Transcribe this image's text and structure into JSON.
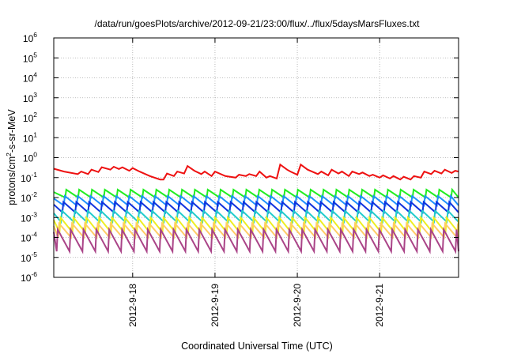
{
  "chart_data": {
    "type": "line",
    "title": "/data/run/goesPlots/archive/2012-09-21/23:00/flux/../flux/5daysMarsFluxes.txt",
    "xlabel": "Coordinated Universal Time (UTC)",
    "ylabel_parts": {
      "pre": "protons/cm",
      "sup": "2",
      "post": "-s-sr-MeV"
    },
    "y_scale": "log",
    "ylim": [
      1e-06,
      1000000.0
    ],
    "y_ticks": [
      {
        "value": -6,
        "base": "10",
        "exp": "-6"
      },
      {
        "value": -5,
        "base": "10",
        "exp": "-5"
      },
      {
        "value": -4,
        "base": "10",
        "exp": "-4"
      },
      {
        "value": -3,
        "base": "10",
        "exp": "-3"
      },
      {
        "value": -2,
        "base": "10",
        "exp": "-2"
      },
      {
        "value": -1,
        "base": "10",
        "exp": "-1"
      },
      {
        "value": 0,
        "base": "10",
        "exp": "0"
      },
      {
        "value": 1,
        "base": "10",
        "exp": "1"
      },
      {
        "value": 2,
        "base": "10",
        "exp": "2"
      },
      {
        "value": 3,
        "base": "10",
        "exp": "3"
      },
      {
        "value": 4,
        "base": "10",
        "exp": "4"
      },
      {
        "value": 5,
        "base": "10",
        "exp": "5"
      },
      {
        "value": 6,
        "base": "10",
        "exp": "6"
      }
    ],
    "xlim": [
      "2012-09-17 01:00",
      "2012-09-21 23:00"
    ],
    "x_ticks": [
      {
        "label": "2012-9-18",
        "date": "2012-09-18"
      },
      {
        "label": "2012-9-19",
        "date": "2012-09-19"
      },
      {
        "label": "2012-9-20",
        "date": "2012-09-20"
      },
      {
        "label": "2012-9-21",
        "date": "2012-09-21"
      }
    ],
    "grid": true,
    "legend": "none",
    "series": [
      {
        "color": "#ee1111",
        "shape": "irregular",
        "points": [
          [
            "2012-09-17 01:00",
            0.28
          ],
          [
            "2012-09-17 04:00",
            0.2
          ],
          [
            "2012-09-17 08:00",
            0.15
          ],
          [
            "2012-09-17 09:00",
            0.2
          ],
          [
            "2012-09-17 11:00",
            0.15
          ],
          [
            "2012-09-17 12:00",
            0.25
          ],
          [
            "2012-09-17 14:00",
            0.19
          ],
          [
            "2012-09-17 15:00",
            0.33
          ],
          [
            "2012-09-17 17:30",
            0.25
          ],
          [
            "2012-09-17 18:30",
            0.35
          ],
          [
            "2012-09-17 20:00",
            0.27
          ],
          [
            "2012-09-17 21:00",
            0.33
          ],
          [
            "2012-09-17 23:00",
            0.22
          ],
          [
            "2012-09-18 00:00",
            0.3
          ],
          [
            "2012-09-18 02:00",
            0.2
          ],
          [
            "2012-09-18 05:00",
            0.12
          ],
          [
            "2012-09-18 08:00",
            0.08
          ],
          [
            "2012-09-18 09:00",
            0.08
          ],
          [
            "2012-09-18 10:00",
            0.16
          ],
          [
            "2012-09-18 12:00",
            0.12
          ],
          [
            "2012-09-18 13:00",
            0.2
          ],
          [
            "2012-09-18 15:00",
            0.16
          ],
          [
            "2012-09-18 16:00",
            0.38
          ],
          [
            "2012-09-18 18:00",
            0.22
          ],
          [
            "2012-09-18 20:00",
            0.15
          ],
          [
            "2012-09-18 21:00",
            0.2
          ],
          [
            "2012-09-18 23:00",
            0.12
          ],
          [
            "2012-09-19 00:00",
            0.2
          ],
          [
            "2012-09-19 03:00",
            0.12
          ],
          [
            "2012-09-19 06:00",
            0.1
          ],
          [
            "2012-09-19 07:00",
            0.14
          ],
          [
            "2012-09-19 09:00",
            0.12
          ],
          [
            "2012-09-19 10:00",
            0.15
          ],
          [
            "2012-09-19 12:00",
            0.12
          ],
          [
            "2012-09-19 13:00",
            0.2
          ],
          [
            "2012-09-19 15:00",
            0.1
          ],
          [
            "2012-09-19 16:00",
            0.12
          ],
          [
            "2012-09-19 18:00",
            0.09
          ],
          [
            "2012-09-19 19:00",
            0.45
          ],
          [
            "2012-09-19 21:00",
            0.25
          ],
          [
            "2012-09-19 22:00",
            0.2
          ],
          [
            "2012-09-20 00:00",
            0.14
          ],
          [
            "2012-09-20 01:00",
            0.45
          ],
          [
            "2012-09-20 03:00",
            0.25
          ],
          [
            "2012-09-20 06:00",
            0.15
          ],
          [
            "2012-09-20 07:00",
            0.2
          ],
          [
            "2012-09-20 09:00",
            0.13
          ],
          [
            "2012-09-20 10:00",
            0.25
          ],
          [
            "2012-09-20 12:00",
            0.16
          ],
          [
            "2012-09-20 13:00",
            0.2
          ],
          [
            "2012-09-20 15:00",
            0.12
          ],
          [
            "2012-09-20 16:00",
            0.2
          ],
          [
            "2012-09-20 18:00",
            0.15
          ],
          [
            "2012-09-20 19:00",
            0.18
          ],
          [
            "2012-09-20 21:00",
            0.12
          ],
          [
            "2012-09-20 22:00",
            0.14
          ],
          [
            "2012-09-21 00:00",
            0.1
          ],
          [
            "2012-09-21 01:00",
            0.13
          ],
          [
            "2012-09-21 03:00",
            0.09
          ],
          [
            "2012-09-21 04:00",
            0.12
          ],
          [
            "2012-09-21 06:00",
            0.08
          ],
          [
            "2012-09-21 07:00",
            0.11
          ],
          [
            "2012-09-21 09:00",
            0.08
          ],
          [
            "2012-09-21 10:00",
            0.12
          ],
          [
            "2012-09-21 12:00",
            0.1
          ],
          [
            "2012-09-21 13:00",
            0.2
          ],
          [
            "2012-09-21 15:00",
            0.15
          ],
          [
            "2012-09-21 16:00",
            0.22
          ],
          [
            "2012-09-21 18:00",
            0.16
          ],
          [
            "2012-09-21 19:00",
            0.25
          ],
          [
            "2012-09-21 21:00",
            0.17
          ],
          [
            "2012-09-21 22:00",
            0.22
          ],
          [
            "2012-09-21 23:00",
            0.2
          ]
        ]
      },
      {
        "color": "#22ee22",
        "shape": "sawtooth",
        "period_hours": 3.75,
        "peak": 0.025,
        "trough": 0.01
      },
      {
        "color": "#1e90ff",
        "shape": "sawtooth",
        "period_hours": 3.75,
        "peak": 0.012,
        "trough": 0.004
      },
      {
        "color": "#1133dd",
        "shape": "sawtooth",
        "period_hours": 3.75,
        "peak": 0.006,
        "trough": 0.0018
      },
      {
        "color": "#22cccc",
        "shape": "sawtooth",
        "period_hours": 3.75,
        "peak": 0.0022,
        "trough": 0.0006
      },
      {
        "color": "#eeee22",
        "shape": "sawtooth",
        "period_hours": 3.75,
        "peak": 0.001,
        "trough": 0.00018
      },
      {
        "color": "#ffcc66",
        "shape": "sawtooth",
        "period_hours": 3.75,
        "peak": 0.0005,
        "trough": 0.0001
      },
      {
        "color": "#aa4488",
        "shape": "sawtooth",
        "period_hours": 3.75,
        "peak": 0.00025,
        "trough": 2e-05
      }
    ]
  }
}
